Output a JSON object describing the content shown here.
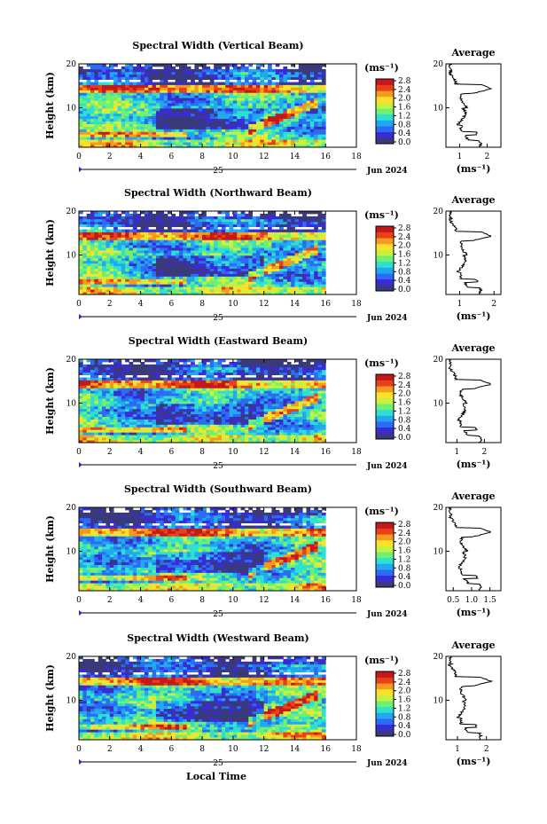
{
  "x_axis_label": "Local Time",
  "date_label": "Jun 2024",
  "day_label": "25",
  "height_label": "Height (km)",
  "unit_label": "(ms⁻¹)",
  "average_title": "Average",
  "colorbar": {
    "ticks": [
      "0.0",
      "0.4",
      "0.8",
      "1.2",
      "1.6",
      "2.0",
      "2.4",
      "2.8"
    ],
    "colors": [
      "#3a3a7a",
      "#3a2bd6",
      "#2a6cf5",
      "#22a8f0",
      "#2ee0d0",
      "#70f070",
      "#c8f040",
      "#fde02a",
      "#f59a1e",
      "#e8401a",
      "#c4181a"
    ]
  },
  "chart_data": [
    {
      "type": "heatmap",
      "title": "Spectral Width (Vertical Beam)",
      "x_ticks": [
        "0",
        "2",
        "4",
        "6",
        "8",
        "10",
        "12",
        "14",
        "16",
        "18"
      ],
      "xlim": [
        0,
        18
      ],
      "y_ticks": [
        "10",
        "20"
      ],
      "ylim": [
        1,
        20
      ],
      "avg_x_ticks": [
        "1",
        "2"
      ],
      "avg_xlim": [
        0.5,
        2.5
      ]
    },
    {
      "type": "heatmap",
      "title": "Spectral Width (Northward Beam)",
      "x_ticks": [
        "0",
        "2",
        "4",
        "6",
        "8",
        "10",
        "12",
        "14",
        "16",
        "18"
      ],
      "xlim": [
        0,
        18
      ],
      "y_ticks": [
        "10",
        "20"
      ],
      "ylim": [
        1,
        20
      ],
      "avg_x_ticks": [
        "1",
        "2"
      ],
      "avg_xlim": [
        0.6,
        2.2
      ]
    },
    {
      "type": "heatmap",
      "title": "Spectral Width (Eastward Beam)",
      "x_ticks": [
        "0",
        "2",
        "4",
        "6",
        "8",
        "10",
        "12",
        "14",
        "16",
        "18"
      ],
      "xlim": [
        0,
        18
      ],
      "y_ticks": [
        "10",
        "20"
      ],
      "ylim": [
        1,
        20
      ],
      "avg_x_ticks": [
        "1",
        "2"
      ],
      "avg_xlim": [
        0.6,
        2.6
      ]
    },
    {
      "type": "heatmap",
      "title": "Spectral Width (Southward Beam)",
      "x_ticks": [
        "0",
        "2",
        "4",
        "6",
        "8",
        "10",
        "12",
        "14",
        "16",
        "18"
      ],
      "xlim": [
        0,
        18
      ],
      "y_ticks": [
        "10",
        "20"
      ],
      "ylim": [
        1,
        20
      ],
      "avg_x_ticks": [
        "0.5",
        "1.0",
        "1.5"
      ],
      "avg_xlim": [
        0.3,
        1.8
      ]
    },
    {
      "type": "heatmap",
      "title": "Spectral Width (Westward Beam)",
      "x_ticks": [
        "0",
        "2",
        "4",
        "6",
        "8",
        "10",
        "12",
        "14",
        "16",
        "18"
      ],
      "xlim": [
        0,
        18
      ],
      "y_ticks": [
        "10",
        "20"
      ],
      "ylim": [
        1,
        20
      ],
      "avg_x_ticks": [
        "1",
        "2"
      ],
      "avg_xlim": [
        0.6,
        2.5
      ]
    }
  ]
}
